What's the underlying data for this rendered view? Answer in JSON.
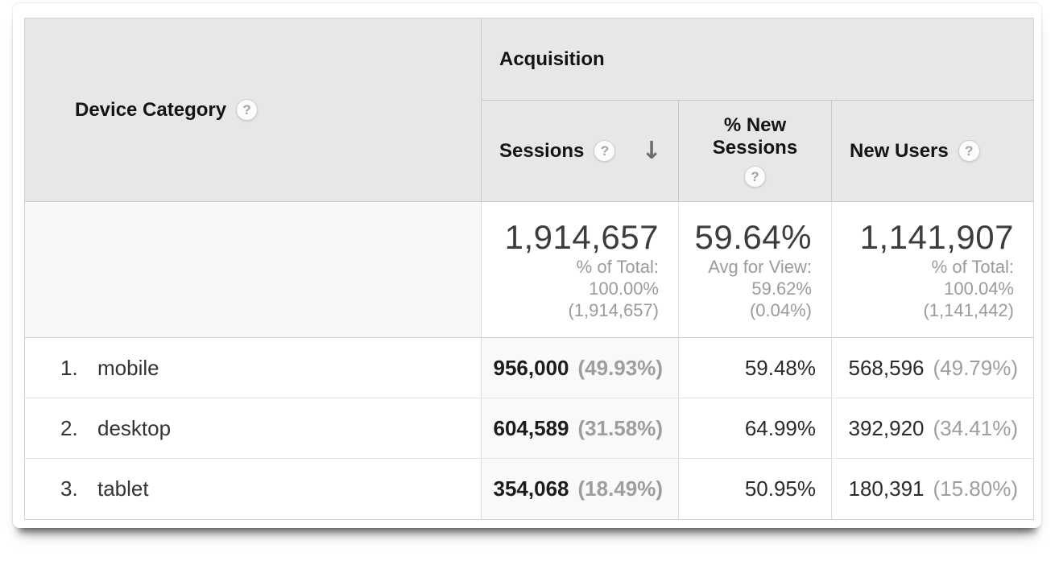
{
  "header": {
    "dimension": {
      "label": "Device Category"
    },
    "group": {
      "label": "Acquisition"
    },
    "metrics": {
      "sessions": {
        "label": "Sessions",
        "sorted": "descending",
        "sort_glyph": "↓"
      },
      "pct_new_sessions": {
        "label_line1": "% New",
        "label_line2": "Sessions"
      },
      "new_users": {
        "label": "New Users"
      }
    },
    "help_glyph": "?"
  },
  "summary": {
    "sessions": {
      "value": "1,914,657",
      "note1": "% of Total:",
      "note2": "100.00%",
      "note3": "(1,914,657)"
    },
    "pct_new_sessions": {
      "value": "59.64%",
      "note1": "Avg for View:",
      "note2": "59.62%",
      "note3": "(0.04%)"
    },
    "new_users": {
      "value": "1,141,907",
      "note1": "% of Total:",
      "note2": "100.04%",
      "note3": "(1,141,442)"
    }
  },
  "rows": [
    {
      "index": "1.",
      "category": "mobile",
      "sessions": "956,000",
      "sessions_pct": "(49.93%)",
      "pct_new_sessions": "59.48%",
      "new_users": "568,596",
      "new_users_pct": "(49.79%)"
    },
    {
      "index": "2.",
      "category": "desktop",
      "sessions": "604,589",
      "sessions_pct": "(31.58%)",
      "pct_new_sessions": "64.99%",
      "new_users": "392,920",
      "new_users_pct": "(34.41%)"
    },
    {
      "index": "3.",
      "category": "tablet",
      "sessions": "354,068",
      "sessions_pct": "(18.49%)",
      "pct_new_sessions": "50.95%",
      "new_users": "180,391",
      "new_users_pct": "(15.80%)"
    }
  ],
  "colors": {
    "header_bg": "#e7e7e7",
    "sorted_column_bg": "#f9f9f9",
    "summary_dimension_bg": "#f8f8f8",
    "muted_text": "#9b9b9b",
    "header_text": "#141414"
  }
}
